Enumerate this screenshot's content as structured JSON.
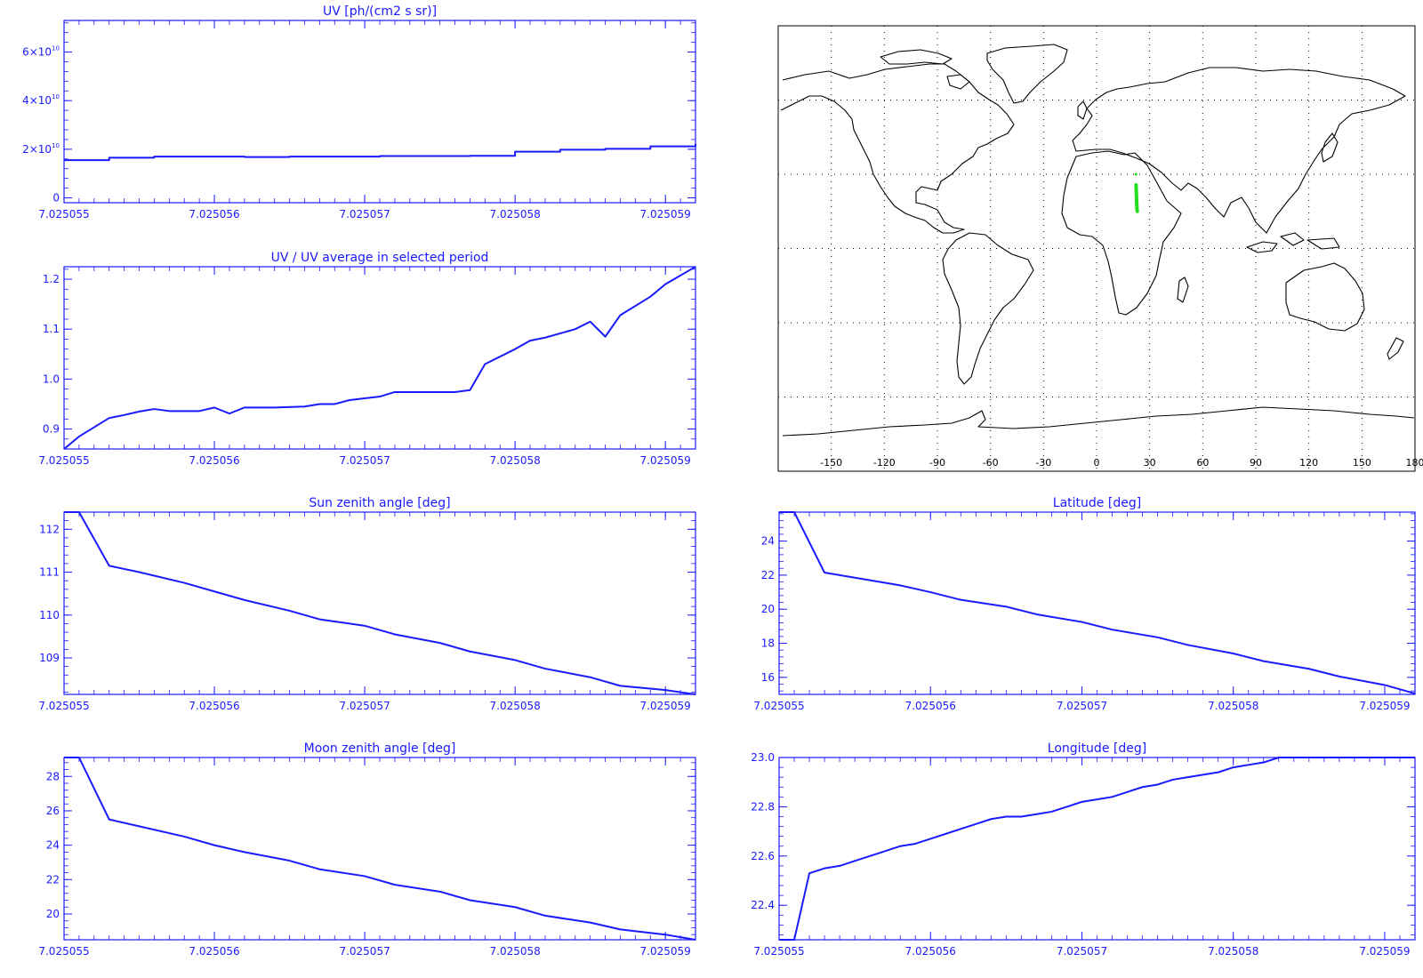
{
  "colors": {
    "axis": "#1a1aff",
    "line": "#1a1aff",
    "map_outline": "#000000",
    "map_grid": "#000000",
    "track": "#22dd22"
  },
  "chart_data": [
    {
      "id": "uv",
      "type": "line",
      "title": "UV [ph/(cm2 s sr)]",
      "xlabel": "",
      "ylabel": "",
      "xlim": [
        7.025055,
        7.0250592
      ],
      "ylim": [
        -2000000000.0,
        73000000000.0
      ],
      "xticks": [
        "7.025055",
        "7.025056",
        "7.025057",
        "7.025058",
        "7.025059"
      ],
      "yticks": [
        {
          "value": 0,
          "base": "0",
          "exp": ""
        },
        {
          "value": 20000000000.0,
          "base": "2×10",
          "exp": "10"
        },
        {
          "value": 40000000000.0,
          "base": "4×10",
          "exp": "10"
        },
        {
          "value": 60000000000.0,
          "base": "6×10",
          "exp": "10"
        }
      ],
      "step": true,
      "x": [
        7.025055,
        7.0250553,
        7.0250556,
        7.0250559,
        7.0250562,
        7.0250565,
        7.0250568,
        7.0250571,
        7.0250574,
        7.0250577,
        7.025058,
        7.0250583,
        7.0250586,
        7.0250589,
        7.0250592
      ],
      "y": [
        15500000000.0,
        16500000000.0,
        17000000000.0,
        17000000000.0,
        16800000000.0,
        17000000000.0,
        17000000000.0,
        17200000000.0,
        17200000000.0,
        17300000000.0,
        19000000000.0,
        19800000000.0,
        20200000000.0,
        21200000000.0,
        22200000000.0
      ]
    },
    {
      "id": "uv_ratio",
      "type": "line",
      "title": "UV / UV average in selected period",
      "xlim": [
        7.025055,
        7.0250592
      ],
      "ylim": [
        0.86,
        1.225
      ],
      "xticks": [
        "7.025055",
        "7.025056",
        "7.025057",
        "7.025058",
        "7.025059"
      ],
      "yticks": [
        {
          "value": 0.9,
          "base": "0.9",
          "exp": ""
        },
        {
          "value": 1.0,
          "base": "1.0",
          "exp": ""
        },
        {
          "value": 1.1,
          "base": "1.1",
          "exp": ""
        },
        {
          "value": 1.2,
          "base": "1.2",
          "exp": ""
        }
      ],
      "x": [
        7.025055,
        7.0250551,
        7.0250553,
        7.0250554,
        7.0250555,
        7.0250556,
        7.0250557,
        7.0250558,
        7.0250559,
        7.025056,
        7.0250561,
        7.0250562,
        7.0250563,
        7.0250564,
        7.0250566,
        7.0250567,
        7.0250568,
        7.0250569,
        7.0250571,
        7.0250572,
        7.0250573,
        7.0250574,
        7.0250576,
        7.0250577,
        7.0250578,
        7.025058,
        7.0250581,
        7.0250582,
        7.0250584,
        7.0250585,
        7.0250586,
        7.0250587,
        7.0250589,
        7.025059,
        7.0250592
      ],
      "y": [
        0.86,
        0.885,
        0.922,
        0.928,
        0.935,
        0.94,
        0.936,
        0.936,
        0.936,
        0.943,
        0.931,
        0.943,
        0.943,
        0.943,
        0.945,
        0.95,
        0.95,
        0.958,
        0.965,
        0.974,
        0.974,
        0.974,
        0.974,
        0.978,
        1.03,
        1.06,
        1.077,
        1.083,
        1.1,
        1.115,
        1.085,
        1.128,
        1.165,
        1.19,
        1.225
      ]
    },
    {
      "id": "sza",
      "type": "line",
      "title": "Sun zenith angle [deg]",
      "xlim": [
        7.025055,
        7.0250592
      ],
      "ylim": [
        108.15,
        112.4
      ],
      "xticks": [
        "7.025055",
        "7.025056",
        "7.025057",
        "7.025058",
        "7.025059"
      ],
      "yticks": [
        {
          "value": 109,
          "base": "109",
          "exp": ""
        },
        {
          "value": 110,
          "base": "110",
          "exp": ""
        },
        {
          "value": 111,
          "base": "111",
          "exp": ""
        },
        {
          "value": 112,
          "base": "112",
          "exp": ""
        }
      ],
      "x": [
        7.025055,
        7.0250551,
        7.0250553,
        7.0250555,
        7.0250558,
        7.025056,
        7.0250562,
        7.0250565,
        7.0250567,
        7.025057,
        7.0250572,
        7.0250575,
        7.0250577,
        7.025058,
        7.0250582,
        7.0250585,
        7.0250587,
        7.025059,
        7.0250592
      ],
      "y": [
        112.4,
        112.4,
        111.15,
        111.0,
        110.75,
        110.55,
        110.35,
        110.1,
        109.9,
        109.75,
        109.55,
        109.35,
        109.15,
        108.95,
        108.75,
        108.55,
        108.35,
        108.25,
        108.15
      ]
    },
    {
      "id": "lat",
      "type": "line",
      "title": "Latitude [deg]",
      "xlim": [
        7.025055,
        7.0250592
      ],
      "ylim": [
        15.0,
        25.7
      ],
      "xticks": [
        "7.025055",
        "7.025056",
        "7.025057",
        "7.025058",
        "7.025059"
      ],
      "yticks": [
        {
          "value": 16,
          "base": "16",
          "exp": ""
        },
        {
          "value": 18,
          "base": "18",
          "exp": ""
        },
        {
          "value": 20,
          "base": "20",
          "exp": ""
        },
        {
          "value": 22,
          "base": "22",
          "exp": ""
        },
        {
          "value": 24,
          "base": "24",
          "exp": ""
        }
      ],
      "x": [
        7.025055,
        7.0250551,
        7.0250553,
        7.0250555,
        7.0250558,
        7.025056,
        7.0250562,
        7.0250565,
        7.0250567,
        7.025057,
        7.0250572,
        7.0250575,
        7.0250577,
        7.025058,
        7.0250582,
        7.0250585,
        7.0250587,
        7.025059,
        7.0250592
      ],
      "y": [
        25.7,
        25.7,
        22.15,
        21.85,
        21.4,
        21.0,
        20.55,
        20.15,
        19.7,
        19.25,
        18.8,
        18.35,
        17.9,
        17.4,
        16.95,
        16.5,
        16.05,
        15.55,
        15.05
      ]
    },
    {
      "id": "mza",
      "type": "line",
      "title": "Moon zenith angle [deg]",
      "xlim": [
        7.025055,
        7.0250592
      ],
      "ylim": [
        18.5,
        29.1
      ],
      "xticks": [
        "7.025055",
        "7.025056",
        "7.025057",
        "7.025058",
        "7.025059"
      ],
      "yticks": [
        {
          "value": 20,
          "base": "20",
          "exp": ""
        },
        {
          "value": 22,
          "base": "22",
          "exp": ""
        },
        {
          "value": 24,
          "base": "24",
          "exp": ""
        },
        {
          "value": 26,
          "base": "26",
          "exp": ""
        },
        {
          "value": 28,
          "base": "28",
          "exp": ""
        }
      ],
      "x": [
        7.025055,
        7.0250551,
        7.0250553,
        7.0250555,
        7.0250558,
        7.025056,
        7.0250562,
        7.0250565,
        7.0250567,
        7.025057,
        7.0250572,
        7.0250575,
        7.0250577,
        7.025058,
        7.0250582,
        7.0250585,
        7.0250587,
        7.025059,
        7.0250592
      ],
      "y": [
        29.1,
        29.1,
        25.5,
        25.1,
        24.5,
        24.0,
        23.6,
        23.1,
        22.6,
        22.2,
        21.7,
        21.3,
        20.8,
        20.4,
        19.9,
        19.5,
        19.1,
        18.8,
        18.5
      ]
    },
    {
      "id": "lon",
      "type": "line",
      "title": "Longitude [deg]",
      "xlim": [
        7.025055,
        7.0250592
      ],
      "ylim": [
        22.26,
        23.0
      ],
      "xticks": [
        "7.025055",
        "7.025056",
        "7.025057",
        "7.025058",
        "7.025059"
      ],
      "yticks": [
        {
          "value": 22.4,
          "base": "22.4",
          "exp": ""
        },
        {
          "value": 22.6,
          "base": "22.6",
          "exp": ""
        },
        {
          "value": 22.8,
          "base": "22.8",
          "exp": ""
        },
        {
          "value": 23.0,
          "base": "23.0",
          "exp": ""
        }
      ],
      "x": [
        7.025055,
        7.0250551,
        7.0250552,
        7.0250553,
        7.0250554,
        7.0250555,
        7.0250556,
        7.0250557,
        7.0250558,
        7.0250559,
        7.025056,
        7.0250561,
        7.0250562,
        7.0250563,
        7.0250564,
        7.0250565,
        7.0250566,
        7.0250567,
        7.0250568,
        7.0250569,
        7.025057,
        7.0250571,
        7.0250572,
        7.0250573,
        7.0250574,
        7.0250575,
        7.0250576,
        7.0250577,
        7.0250578,
        7.0250579,
        7.025058,
        7.0250581,
        7.0250582,
        7.0250583,
        7.0250584,
        7.0250585,
        7.0250586,
        7.0250587,
        7.0250588,
        7.0250589,
        7.025059,
        7.0250592
      ],
      "y": [
        22.26,
        22.26,
        22.53,
        22.55,
        22.56,
        22.58,
        22.6,
        22.62,
        22.64,
        22.65,
        22.67,
        22.69,
        22.71,
        22.73,
        22.75,
        22.76,
        22.76,
        22.77,
        22.78,
        22.8,
        22.82,
        22.83,
        22.84,
        22.86,
        22.88,
        22.89,
        22.91,
        22.92,
        22.93,
        22.94,
        22.96,
        22.97,
        22.98,
        23.0,
        23.0,
        23.0,
        23.0,
        23.0,
        23.0,
        23.0,
        23.0,
        23.0
      ]
    }
  ],
  "map": {
    "xtick_labels": [
      "-150",
      "-120",
      "-90",
      "-60",
      "-30",
      "0",
      "30",
      "60",
      "90",
      "120",
      "150",
      "180"
    ],
    "xtick_values": [
      -150,
      -120,
      -90,
      -60,
      -30,
      0,
      30,
      60,
      90,
      120,
      150,
      180
    ],
    "grid_lon": [
      -150,
      -120,
      -90,
      -60,
      -30,
      0,
      30,
      60,
      90,
      120,
      150
    ],
    "grid_lat": [
      -60,
      -30,
      0,
      30,
      60
    ],
    "lon_range": [
      -180,
      180
    ],
    "lat_range": [
      -90,
      90
    ],
    "track": {
      "lon": [
        22.3,
        22.4,
        22.5,
        22.6,
        22.7,
        22.8,
        23.0
      ],
      "lat": [
        25.7,
        24.0,
        22.0,
        20.0,
        18.0,
        16.0,
        15.0
      ]
    }
  }
}
